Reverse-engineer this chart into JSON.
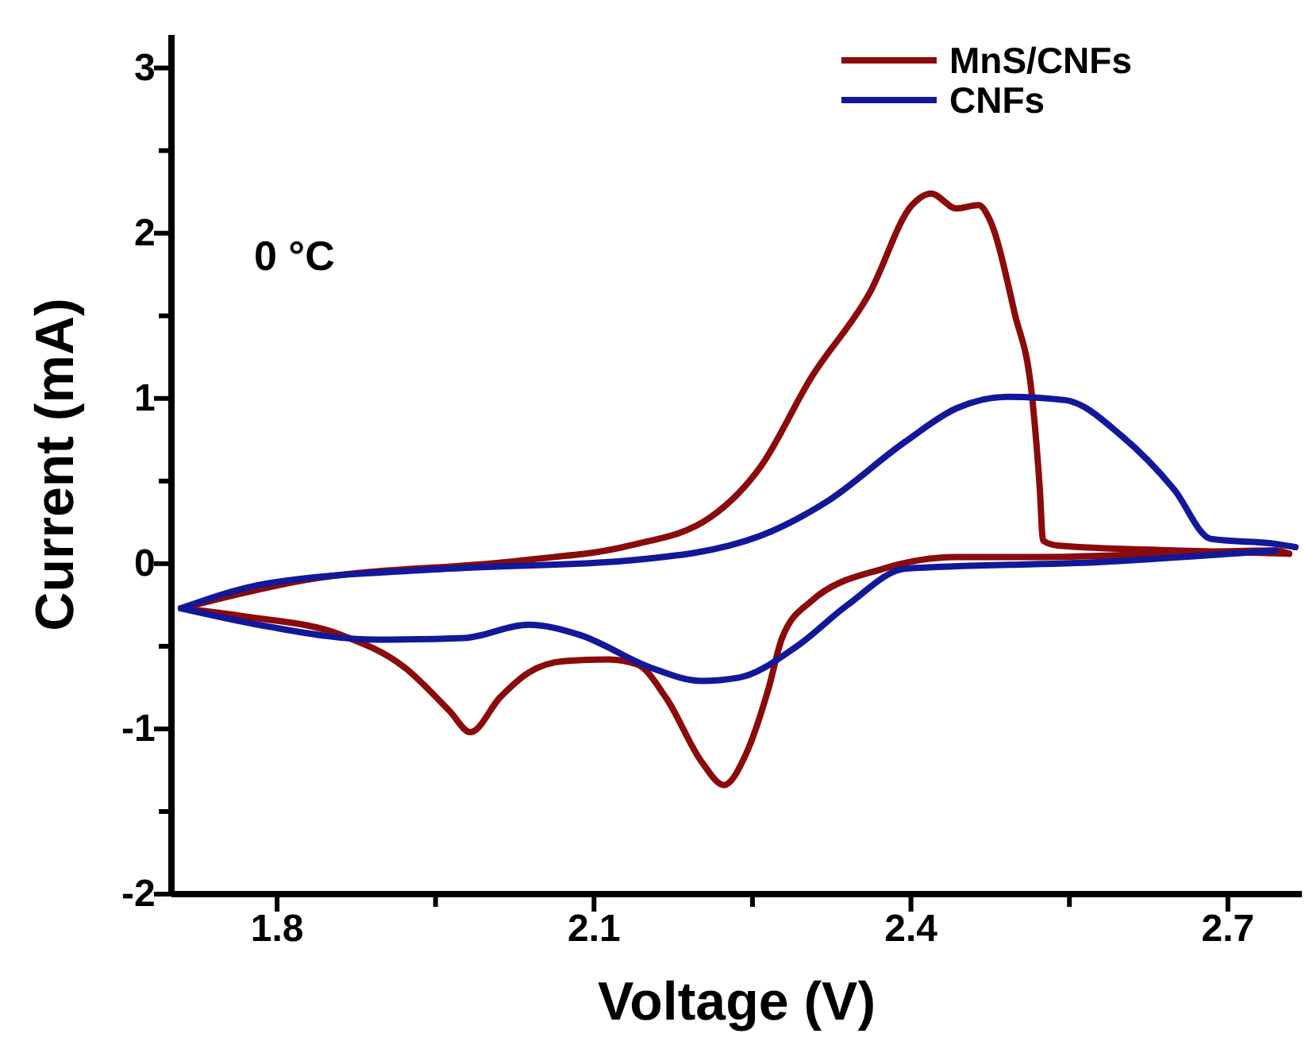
{
  "chart_data": {
    "type": "line",
    "xlabel": "Voltage (V)",
    "ylabel": "Current (mA)",
    "annotations": [
      "0 °C"
    ],
    "xlim": [
      1.7,
      2.77
    ],
    "ylim": [
      -2,
      3.2
    ],
    "xticks": [
      1.8,
      {
        "value": 1.95,
        "label": null
      },
      2.1,
      {
        "value": 2.25,
        "label": null
      },
      2.4,
      {
        "value": 2.55,
        "label": null
      },
      2.7
    ],
    "yticks": [
      -2,
      {
        "value": -1.5,
        "label": null
      },
      -1,
      {
        "value": -0.5,
        "label": null
      },
      0,
      {
        "value": 0.5,
        "label": null
      },
      1,
      {
        "value": 1.5,
        "label": null
      },
      2,
      {
        "value": 2.5,
        "label": null
      },
      3
    ],
    "legend": "top right",
    "grid": false,
    "marker": "none",
    "line_style": "solid",
    "series": [
      {
        "name": "MnS/CNFs",
        "color": "#8b0a0a",
        "x": [
          1.709,
          1.826,
          2.032,
          2.134,
          2.21,
          2.258,
          2.305,
          2.361,
          2.401,
          2.419,
          2.443,
          2.464,
          2.474,
          2.498,
          2.515,
          2.522,
          2.525,
          2.539,
          2.649,
          2.758
        ],
        "values": [
          -0.27,
          -0.1,
          0.02,
          0.11,
          0.28,
          0.59,
          1.12,
          1.64,
          2.17,
          2.24,
          2.15,
          2.17,
          2.09,
          1.52,
          0.99,
          0.45,
          0.14,
          0.11,
          0.08,
          0.06
        ]
      },
      {
        "color": "#8b0a0a",
        "x": [
          1.709,
          1.77,
          1.86,
          1.921,
          1.963,
          1.983,
          2.011,
          2.038,
          2.072,
          2.114,
          2.141,
          2.168,
          2.202,
          2.223,
          2.244,
          2.265,
          2.278,
          2.305,
          2.374,
          2.443,
          2.525,
          2.745,
          2.758
        ],
        "values": [
          -0.27,
          -0.32,
          -0.43,
          -0.63,
          -0.89,
          -1.02,
          -0.81,
          -0.66,
          -0.59,
          -0.58,
          -0.61,
          -0.81,
          -1.2,
          -1.34,
          -1.15,
          -0.76,
          -0.45,
          -0.23,
          -0.03,
          0.04,
          0.04,
          0.08,
          0.06
        ]
      },
      {
        "name": "CNFs",
        "color": "#12189a",
        "x": [
          1.709,
          1.791,
          1.963,
          2.134,
          2.258,
          2.319,
          2.395,
          2.443,
          2.491,
          2.546,
          2.6,
          2.649,
          2.684,
          2.745,
          2.764
        ],
        "values": [
          -0.27,
          -0.12,
          -0.03,
          0.02,
          0.17,
          0.37,
          0.74,
          0.94,
          1.01,
          0.99,
          0.77,
          0.45,
          0.15,
          0.12,
          0.1
        ]
      },
      {
        "color": "#12189a",
        "x": [
          1.709,
          1.791,
          1.894,
          1.977,
          2.038,
          2.086,
          2.154,
          2.202,
          2.237,
          2.292,
          2.34,
          2.395,
          2.58,
          2.745
        ],
        "values": [
          -0.27,
          -0.38,
          -0.46,
          -0.45,
          -0.37,
          -0.43,
          -0.63,
          -0.71,
          -0.69,
          -0.5,
          -0.25,
          -0.03,
          0.01,
          0.08
        ]
      }
    ]
  }
}
